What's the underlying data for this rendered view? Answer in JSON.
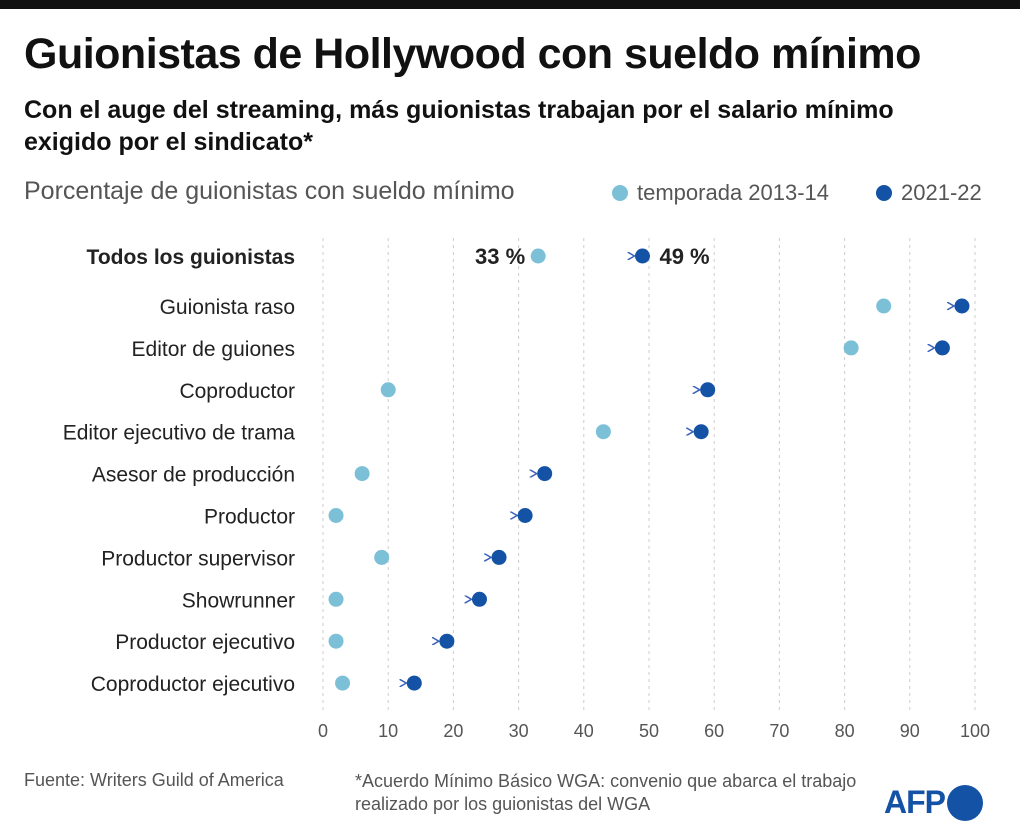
{
  "title": "Guionistas de Hollywood con sueldo mínimo",
  "subtitle": "Con el auge del streaming, más guionistas trabajan por el salario mínimo exigido por el sindicato*",
  "chart_data": {
    "type": "dumbbell",
    "ylabel": "",
    "xlabel": "",
    "measure_label": "Porcentaje de guionistas con sueldo mínimo",
    "xlim": [
      0,
      100
    ],
    "xticks": [
      0,
      10,
      20,
      30,
      40,
      50,
      60,
      70,
      80,
      90,
      100
    ],
    "grid": "vertical dashed",
    "legend_position": "top-right",
    "series": [
      {
        "name": "temporada 2013-14",
        "color": "#7cc0d8"
      },
      {
        "name": "2021-22",
        "color": "#1452a6"
      }
    ],
    "categories": [
      "Todos los guionistas",
      "Guionista raso",
      "Editor de guiones",
      "Coproductor",
      "Editor ejecutivo de trama",
      "Asesor de producción",
      "Productor",
      "Productor supervisor",
      "Showrunner",
      "Productor ejecutivo",
      "Coproductor ejecutivo"
    ],
    "values_2013_14": [
      33,
      86,
      81,
      10,
      43,
      6,
      2,
      9,
      2,
      2,
      3
    ],
    "values_2021_22": [
      49,
      98,
      95,
      59,
      58,
      34,
      31,
      27,
      24,
      19,
      14
    ],
    "data_labels": {
      "start": "33 %",
      "end": "49 %"
    }
  },
  "footer": {
    "source": "Fuente: Writers Guild of America",
    "note": "*Acuerdo Mínimo Básico WGA: convenio que abarca el trabajo realizado por los guionistas del WGA",
    "logo": "AFP"
  }
}
